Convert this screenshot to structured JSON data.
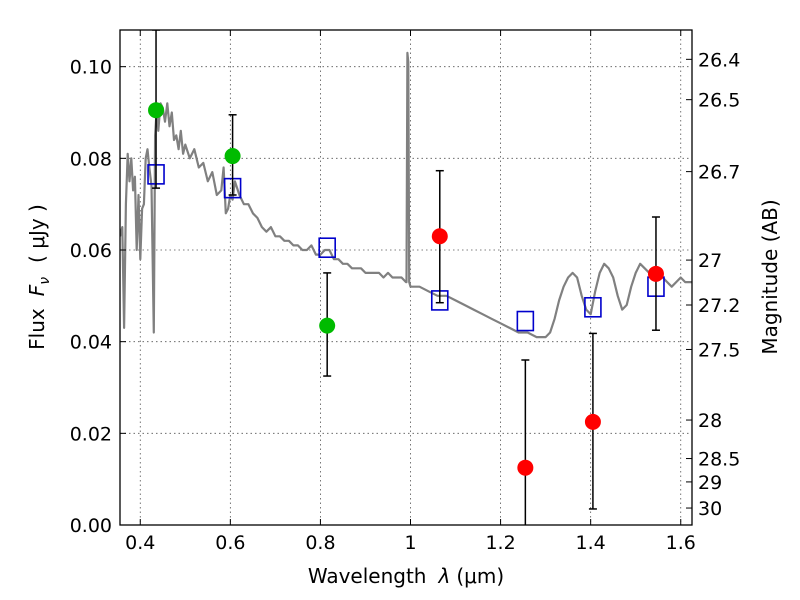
{
  "chart_data": {
    "type": "scatter",
    "title": "",
    "xlabel_text": "Wavelength",
    "xlabel_symbol": "λ",
    "xlabel_unit": "(μm)",
    "ylabel_text": "Flux",
    "ylabel_symbol": "F",
    "ylabel_subscript": "ν",
    "ylabel_unit": "( μJy )",
    "y2label": "Magnitude (AB)",
    "xlim": [
      0.355,
      1.625
    ],
    "ylim": [
      0.0,
      0.108
    ],
    "grid": true,
    "x_ticks": [
      0.4,
      0.6,
      0.8,
      1.0,
      1.2,
      1.4,
      1.6
    ],
    "x_tick_labels": [
      "0.4",
      "0.6",
      "0.8",
      "1",
      "1.2",
      "1.4",
      "1.6"
    ],
    "y_ticks": [
      0.0,
      0.02,
      0.04,
      0.06,
      0.08,
      0.1
    ],
    "y_tick_labels": [
      "0.00",
      "0.02",
      "0.04",
      "0.06",
      "0.08",
      "0.10"
    ],
    "mag_ticks": [
      {
        "flux": 0.1016,
        "label": "26.4"
      },
      {
        "flux": 0.0928,
        "label": "26.5"
      },
      {
        "flux": 0.0771,
        "label": "26.7"
      },
      {
        "flux": 0.0578,
        "label": "27"
      },
      {
        "flux": 0.048,
        "label": "27.2"
      },
      {
        "flux": 0.0383,
        "label": "27.5"
      },
      {
        "flux": 0.0229,
        "label": "28"
      },
      {
        "flux": 0.0145,
        "label": "28.5"
      },
      {
        "flux": 0.0094,
        "label": "29"
      },
      {
        "flux": 0.0037,
        "label": "30"
      }
    ],
    "colors": {
      "model": "#808080",
      "green": "#00bb00",
      "red": "#ff0000",
      "square": "#0000cc",
      "errorbar": "#000000",
      "grid": "#555555"
    },
    "series": [
      {
        "kind": "model-spectrum",
        "x": [
          0.355,
          0.36,
          0.364,
          0.368,
          0.372,
          0.376,
          0.38,
          0.384,
          0.388,
          0.392,
          0.396,
          0.4,
          0.404,
          0.408,
          0.412,
          0.416,
          0.42,
          0.425,
          0.43,
          0.433,
          0.436,
          0.44,
          0.445,
          0.45,
          0.455,
          0.46,
          0.465,
          0.47,
          0.475,
          0.48,
          0.485,
          0.49,
          0.495,
          0.5,
          0.51,
          0.52,
          0.53,
          0.54,
          0.55,
          0.56,
          0.57,
          0.58,
          0.585,
          0.59,
          0.595,
          0.6,
          0.605,
          0.61,
          0.62,
          0.63,
          0.64,
          0.65,
          0.66,
          0.67,
          0.68,
          0.69,
          0.7,
          0.71,
          0.72,
          0.73,
          0.74,
          0.75,
          0.76,
          0.77,
          0.78,
          0.79,
          0.8,
          0.81,
          0.82,
          0.83,
          0.84,
          0.85,
          0.86,
          0.87,
          0.88,
          0.89,
          0.9,
          0.91,
          0.92,
          0.93,
          0.94,
          0.95,
          0.96,
          0.97,
          0.98,
          0.99,
          0.991,
          0.993,
          0.995,
          0.997,
          1.0,
          1.02,
          1.04,
          1.06,
          1.08,
          1.1,
          1.12,
          1.14,
          1.16,
          1.18,
          1.2,
          1.22,
          1.24,
          1.26,
          1.28,
          1.3,
          1.31,
          1.32,
          1.33,
          1.34,
          1.35,
          1.36,
          1.37,
          1.38,
          1.39,
          1.4,
          1.41,
          1.42,
          1.43,
          1.44,
          1.45,
          1.46,
          1.47,
          1.48,
          1.49,
          1.5,
          1.51,
          1.52,
          1.53,
          1.54,
          1.55,
          1.56,
          1.57,
          1.58,
          1.59,
          1.6,
          1.61,
          1.625
        ],
        "y": [
          0.063,
          0.065,
          0.043,
          0.07,
          0.081,
          0.075,
          0.08,
          0.073,
          0.076,
          0.06,
          0.072,
          0.058,
          0.069,
          0.07,
          0.08,
          0.082,
          0.078,
          0.074,
          0.042,
          0.085,
          0.09,
          0.086,
          0.092,
          0.091,
          0.088,
          0.092,
          0.087,
          0.09,
          0.084,
          0.085,
          0.082,
          0.086,
          0.081,
          0.083,
          0.08,
          0.082,
          0.078,
          0.079,
          0.075,
          0.077,
          0.072,
          0.073,
          0.078,
          0.068,
          0.069,
          0.072,
          0.071,
          0.075,
          0.072,
          0.07,
          0.07,
          0.068,
          0.067,
          0.065,
          0.064,
          0.065,
          0.063,
          0.063,
          0.062,
          0.062,
          0.061,
          0.061,
          0.06,
          0.06,
          0.061,
          0.059,
          0.059,
          0.06,
          0.06,
          0.058,
          0.058,
          0.057,
          0.057,
          0.056,
          0.056,
          0.056,
          0.055,
          0.055,
          0.055,
          0.055,
          0.054,
          0.055,
          0.054,
          0.054,
          0.054,
          0.053,
          0.053,
          0.103,
          0.101,
          0.053,
          0.052,
          0.052,
          0.051,
          0.05,
          0.05,
          0.049,
          0.048,
          0.047,
          0.046,
          0.045,
          0.044,
          0.043,
          0.042,
          0.042,
          0.041,
          0.041,
          0.042,
          0.045,
          0.049,
          0.052,
          0.054,
          0.055,
          0.054,
          0.05,
          0.047,
          0.046,
          0.051,
          0.055,
          0.057,
          0.056,
          0.054,
          0.05,
          0.047,
          0.048,
          0.052,
          0.055,
          0.057,
          0.056,
          0.055,
          0.054,
          0.055,
          0.054,
          0.053,
          0.052,
          0.053,
          0.054,
          0.053,
          0.053
        ]
      },
      {
        "kind": "model-points",
        "marker": "open-square",
        "x": [
          0.435,
          0.605,
          0.815,
          1.065,
          1.255,
          1.405,
          1.545
        ],
        "y": [
          0.0765,
          0.0735,
          0.0605,
          0.049,
          0.0445,
          0.0475,
          0.052
        ]
      },
      {
        "kind": "observed",
        "marker": "filled-circle",
        "x": [
          0.435,
          0.605,
          0.815,
          1.065,
          1.255,
          1.405,
          1.545
        ],
        "y": [
          0.0905,
          0.0805,
          0.0435,
          0.063,
          0.0125,
          0.0225,
          0.0548
        ],
        "yerr_low": [
          0.0735,
          0.072,
          0.0325,
          0.0485,
          -0.003,
          0.0035,
          0.0425
        ],
        "yerr_high": [
          0.108,
          0.0895,
          0.055,
          0.0773,
          0.036,
          0.0418,
          0.0672
        ],
        "colors": [
          "green",
          "green",
          "green",
          "red",
          "red",
          "red",
          "red"
        ]
      }
    ]
  }
}
